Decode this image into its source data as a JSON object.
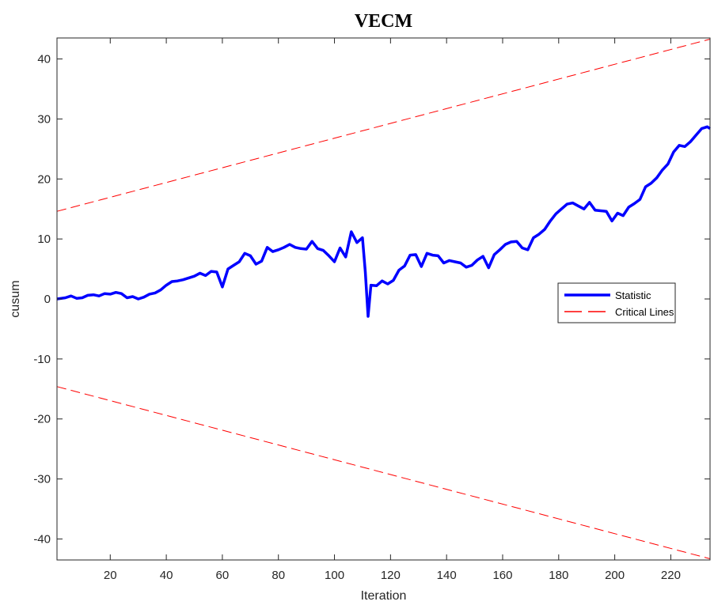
{
  "chart_data": {
    "type": "line",
    "title": "VECM",
    "xlabel": "Iteration",
    "ylabel": "cusum",
    "xlim": [
      1,
      234
    ],
    "ylim": [
      -43.5,
      43.5
    ],
    "xticks": [
      20,
      40,
      60,
      80,
      100,
      120,
      140,
      160,
      180,
      200,
      220
    ],
    "yticks": [
      -40,
      -30,
      -20,
      -10,
      0,
      10,
      20,
      30,
      40
    ],
    "grid": false,
    "legend_position": "right",
    "series": [
      {
        "name": "Statistic",
        "color": "#0000ff",
        "style": "solid",
        "x": [
          1,
          4,
          6,
          8,
          10,
          12,
          14,
          16,
          18,
          20,
          22,
          24,
          26,
          28,
          30,
          32,
          34,
          36,
          38,
          40,
          42,
          44,
          46,
          48,
          50,
          52,
          54,
          56,
          58,
          60,
          62,
          64,
          66,
          68,
          70,
          72,
          74,
          76,
          78,
          80,
          82,
          84,
          86,
          88,
          90,
          92,
          94,
          96,
          98,
          100,
          102,
          104,
          106,
          108,
          110,
          111,
          112,
          113,
          115,
          117,
          119,
          121,
          123,
          125,
          127,
          129,
          131,
          133,
          135,
          137,
          139,
          141,
          143,
          145,
          147,
          149,
          151,
          153,
          155,
          157,
          159,
          161,
          163,
          165,
          167,
          169,
          171,
          173,
          175,
          177,
          179,
          181,
          183,
          185,
          187,
          189,
          191,
          193,
          195,
          197,
          199,
          201,
          203,
          205,
          207,
          209,
          211,
          213,
          215,
          217,
          219,
          221,
          223,
          225,
          227,
          229,
          231,
          233,
          234
        ],
        "values": [
          0.0,
          0.2,
          0.5,
          0.1,
          0.2,
          0.6,
          0.7,
          0.5,
          0.9,
          0.8,
          1.1,
          0.9,
          0.2,
          0.4,
          0.0,
          0.3,
          0.8,
          1.0,
          1.5,
          2.3,
          2.9,
          3.0,
          3.2,
          3.5,
          3.8,
          4.3,
          3.9,
          4.6,
          4.5,
          2.0,
          5.0,
          5.6,
          6.2,
          7.6,
          7.2,
          5.8,
          6.3,
          8.6,
          7.9,
          8.2,
          8.6,
          9.1,
          8.6,
          8.4,
          8.3,
          9.6,
          8.4,
          8.1,
          7.2,
          6.2,
          8.5,
          7.0,
          11.2,
          9.4,
          10.2,
          4.5,
          -2.9,
          2.3,
          2.2,
          3.0,
          2.5,
          3.1,
          4.8,
          5.5,
          7.3,
          7.4,
          5.4,
          7.6,
          7.3,
          7.2,
          6.0,
          6.4,
          6.2,
          6.0,
          5.3,
          5.6,
          6.5,
          7.1,
          5.2,
          7.4,
          8.2,
          9.1,
          9.5,
          9.6,
          8.5,
          8.2,
          10.2,
          10.8,
          11.6,
          13.0,
          14.2,
          15.0,
          15.8,
          16.0,
          15.5,
          15.0,
          16.1,
          14.8,
          14.7,
          14.6,
          13.0,
          14.3,
          13.9,
          15.3,
          15.9,
          16.6,
          18.7,
          19.3,
          20.2,
          21.5,
          22.5,
          24.5,
          25.6,
          25.4,
          26.2,
          27.3,
          28.4,
          28.7,
          28.4
        ]
      },
      {
        "name": "Critical Lines",
        "color": "#ff0000",
        "style": "dashed",
        "x": [
          1,
          234
        ],
        "values": [
          14.6,
          43.3
        ]
      },
      {
        "color": "#ff0000",
        "style": "dashed",
        "x": [
          1,
          234
        ],
        "values": [
          -14.6,
          -43.3
        ]
      }
    ]
  }
}
